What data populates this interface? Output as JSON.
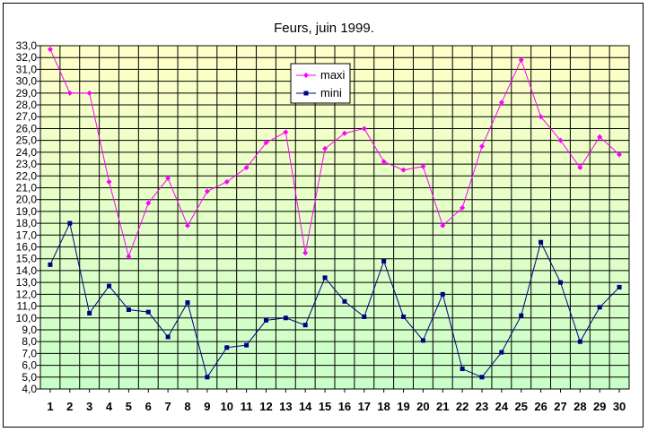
{
  "chart_data": {
    "type": "line",
    "title": "Feurs, juin 1999.",
    "xlabel": "",
    "ylabel": "",
    "ylim": [
      4.0,
      33.0
    ],
    "ystep": 1.0,
    "grid": true,
    "legend": "top-center",
    "categories": [
      "1",
      "2",
      "3",
      "4",
      "5",
      "6",
      "7",
      "8",
      "9",
      "10",
      "11",
      "12",
      "13",
      "14",
      "15",
      "16",
      "17",
      "18",
      "19",
      "20",
      "21",
      "22",
      "23",
      "24",
      "25",
      "26",
      "27",
      "28",
      "29",
      "30"
    ],
    "series": [
      {
        "name": "maxi",
        "color": "#ff00ff",
        "marker": "diamond",
        "values": [
          32.7,
          29.0,
          29.0,
          21.5,
          15.2,
          19.7,
          21.8,
          17.8,
          20.7,
          21.5,
          22.7,
          24.8,
          25.7,
          15.5,
          24.3,
          25.6,
          26.0,
          23.2,
          22.5,
          22.8,
          17.8,
          19.3,
          24.5,
          28.2,
          31.8,
          27.0,
          25.0,
          22.7,
          25.3,
          23.8
        ]
      },
      {
        "name": "mini",
        "color": "#000080",
        "marker": "square",
        "values": [
          14.5,
          18.0,
          10.4,
          12.7,
          10.7,
          10.5,
          8.4,
          11.3,
          5.0,
          7.5,
          7.7,
          9.8,
          10.0,
          9.4,
          13.4,
          11.4,
          10.1,
          14.8,
          10.1,
          8.1,
          12.0,
          5.7,
          5.0,
          7.1,
          10.2,
          16.4,
          13.0,
          8.0,
          10.9,
          12.6
        ]
      }
    ],
    "colors": {
      "plot_top": "#ffffc8",
      "plot_bottom": "#c8ffc8",
      "grid": "#000000"
    }
  }
}
